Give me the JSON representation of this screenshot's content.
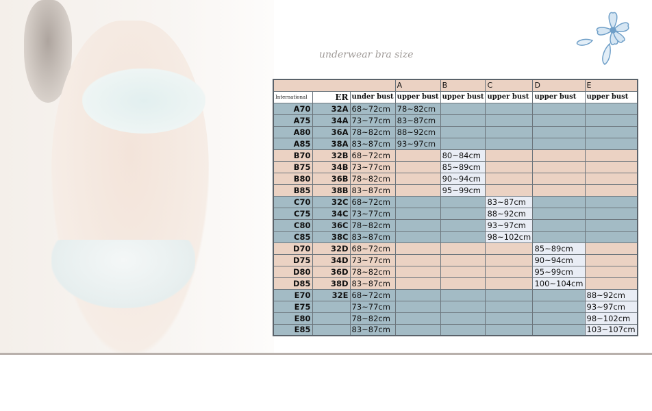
{
  "title": "underwear bra size",
  "colors": {
    "blue": "#a3bbc5",
    "peach": "#ebd2c3",
    "highlight": "#e9edf5"
  },
  "table": {
    "cup_headers": [
      "A",
      "B",
      "C",
      "D",
      "E"
    ],
    "sub_headers": [
      "International",
      "ER",
      "under bust",
      "upper bust",
      "upper bust",
      "upper bust",
      "upper bust",
      "upper bust"
    ],
    "rows": [
      {
        "intl": "A70",
        "er": "32A",
        "under": "68~72cm",
        "cup": 0,
        "upper": "78~82cm"
      },
      {
        "intl": "A75",
        "er": "34A",
        "under": "73~77cm",
        "cup": 0,
        "upper": "83~87cm"
      },
      {
        "intl": "A80",
        "er": "36A",
        "under": "78~82cm",
        "cup": 0,
        "upper": "88~92cm"
      },
      {
        "intl": "A85",
        "er": "38A",
        "under": "83~87cm",
        "cup": 0,
        "upper": "93~97cm"
      },
      {
        "intl": "B70",
        "er": "32B",
        "under": "68~72cm",
        "cup": 1,
        "upper": "80~84cm"
      },
      {
        "intl": "B75",
        "er": "34B",
        "under": "73~77cm",
        "cup": 1,
        "upper": "85~89cm"
      },
      {
        "intl": "B80",
        "er": "36B",
        "under": "78~82cm",
        "cup": 1,
        "upper": "90~94cm"
      },
      {
        "intl": "B85",
        "er": "38B",
        "under": "83~87cm",
        "cup": 1,
        "upper": "95~99cm"
      },
      {
        "intl": "C70",
        "er": "32C",
        "under": "68~72cm",
        "cup": 2,
        "upper": "83~87cm"
      },
      {
        "intl": "C75",
        "er": "34C",
        "under": "73~77cm",
        "cup": 2,
        "upper": "88~92cm"
      },
      {
        "intl": "C80",
        "er": "36C",
        "under": "78~82cm",
        "cup": 2,
        "upper": "93~97cm"
      },
      {
        "intl": "C85",
        "er": "38C",
        "under": "83~87cm",
        "cup": 2,
        "upper": "98~102cm"
      },
      {
        "intl": "D70",
        "er": "32D",
        "under": "68~72cm",
        "cup": 3,
        "upper": "85~89cm"
      },
      {
        "intl": "D75",
        "er": "34D",
        "under": "73~77cm",
        "cup": 3,
        "upper": "90~94cm"
      },
      {
        "intl": "D80",
        "er": "36D",
        "under": "78~82cm",
        "cup": 3,
        "upper": "95~99cm"
      },
      {
        "intl": "D85",
        "er": "38D",
        "under": "83~87cm",
        "cup": 3,
        "upper": "100~104cm"
      },
      {
        "intl": "E70",
        "er": "32E",
        "under": "68~72cm",
        "cup": 4,
        "upper": "88~92cm"
      },
      {
        "intl": "E75",
        "er": "",
        "under": "73~77cm",
        "cup": 4,
        "upper": "93~97cm"
      },
      {
        "intl": "E80",
        "er": "",
        "under": "78~82cm",
        "cup": 4,
        "upper": "98~102cm"
      },
      {
        "intl": "E85",
        "er": "",
        "under": "83~87cm",
        "cup": 4,
        "upper": "103~107cm"
      }
    ]
  }
}
